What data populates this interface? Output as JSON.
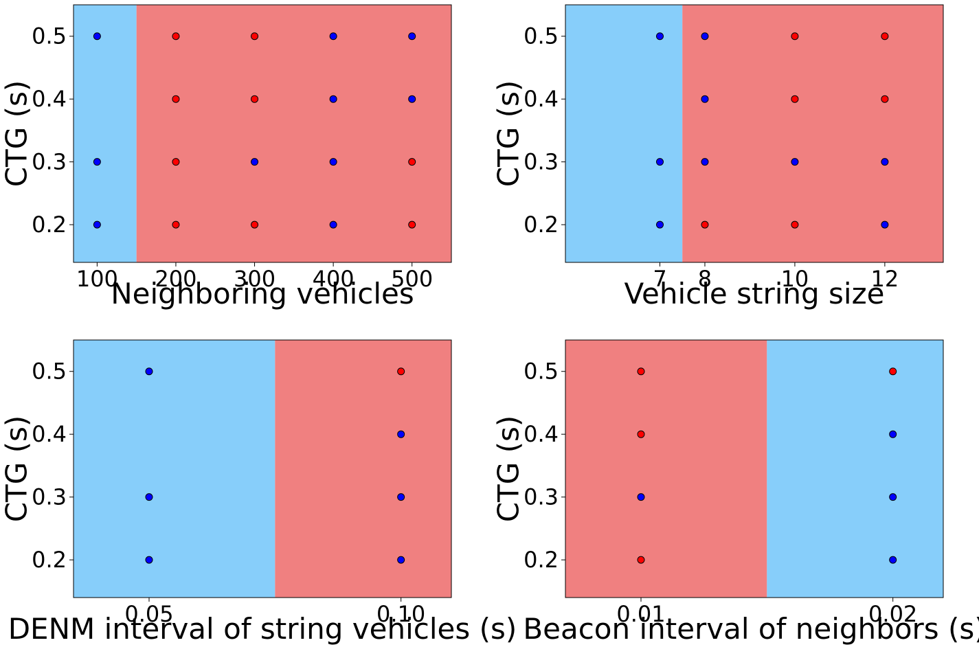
{
  "colors": {
    "region_blue": "#87cefa",
    "region_red": "#f08080",
    "point_blue": "#0000ff",
    "point_red": "#ff0000",
    "marker_edge": "#000000"
  },
  "chart_data": [
    {
      "type": "scatter",
      "xlabel": "Neighboring vehicles",
      "ylabel": "CTG (s)",
      "xlim": [
        70,
        550
      ],
      "ylim": [
        0.14,
        0.55
      ],
      "xticks": [
        100,
        200,
        300,
        400,
        500
      ],
      "xtick_labels": [
        "100",
        "200",
        "300",
        "400",
        "500"
      ],
      "yticks": [
        0.2,
        0.3,
        0.4,
        0.5
      ],
      "ytick_labels": [
        "0.2",
        "0.3",
        "0.4",
        "0.5"
      ],
      "regions": [
        {
          "from": 70,
          "to": 150,
          "class": "blue"
        },
        {
          "from": 150,
          "to": 550,
          "class": "red"
        }
      ],
      "points": [
        {
          "x": 100,
          "y": 0.5,
          "class": "blue"
        },
        {
          "x": 100,
          "y": 0.3,
          "class": "blue"
        },
        {
          "x": 100,
          "y": 0.2,
          "class": "blue"
        },
        {
          "x": 200,
          "y": 0.5,
          "class": "red"
        },
        {
          "x": 200,
          "y": 0.4,
          "class": "red"
        },
        {
          "x": 200,
          "y": 0.3,
          "class": "red"
        },
        {
          "x": 200,
          "y": 0.2,
          "class": "red"
        },
        {
          "x": 300,
          "y": 0.5,
          "class": "red"
        },
        {
          "x": 300,
          "y": 0.4,
          "class": "red"
        },
        {
          "x": 300,
          "y": 0.3,
          "class": "blue"
        },
        {
          "x": 300,
          "y": 0.2,
          "class": "red"
        },
        {
          "x": 400,
          "y": 0.5,
          "class": "blue"
        },
        {
          "x": 400,
          "y": 0.4,
          "class": "blue"
        },
        {
          "x": 400,
          "y": 0.3,
          "class": "blue"
        },
        {
          "x": 400,
          "y": 0.2,
          "class": "blue"
        },
        {
          "x": 500,
          "y": 0.5,
          "class": "blue"
        },
        {
          "x": 500,
          "y": 0.4,
          "class": "blue"
        },
        {
          "x": 500,
          "y": 0.3,
          "class": "red"
        },
        {
          "x": 500,
          "y": 0.2,
          "class": "red"
        }
      ]
    },
    {
      "type": "scatter",
      "xlabel": "Vehicle string size",
      "ylabel": "CTG (s)",
      "xlim": [
        4.9,
        13.3
      ],
      "ylim": [
        0.14,
        0.55
      ],
      "xticks": [
        7,
        8,
        10,
        12
      ],
      "xtick_labels": [
        "7",
        "8",
        "10",
        "12"
      ],
      "yticks": [
        0.2,
        0.3,
        0.4,
        0.5
      ],
      "ytick_labels": [
        "0.2",
        "0.3",
        "0.4",
        "0.5"
      ],
      "regions": [
        {
          "from": 4.9,
          "to": 7.5,
          "class": "blue"
        },
        {
          "from": 7.5,
          "to": 13.3,
          "class": "red"
        }
      ],
      "points": [
        {
          "x": 7,
          "y": 0.5,
          "class": "blue"
        },
        {
          "x": 7,
          "y": 0.3,
          "class": "blue"
        },
        {
          "x": 7,
          "y": 0.2,
          "class": "blue"
        },
        {
          "x": 8,
          "y": 0.5,
          "class": "blue"
        },
        {
          "x": 8,
          "y": 0.4,
          "class": "blue"
        },
        {
          "x": 8,
          "y": 0.3,
          "class": "blue"
        },
        {
          "x": 8,
          "y": 0.2,
          "class": "red"
        },
        {
          "x": 10,
          "y": 0.5,
          "class": "red"
        },
        {
          "x": 10,
          "y": 0.4,
          "class": "red"
        },
        {
          "x": 10,
          "y": 0.3,
          "class": "blue"
        },
        {
          "x": 10,
          "y": 0.2,
          "class": "red"
        },
        {
          "x": 12,
          "y": 0.5,
          "class": "red"
        },
        {
          "x": 12,
          "y": 0.4,
          "class": "red"
        },
        {
          "x": 12,
          "y": 0.3,
          "class": "blue"
        },
        {
          "x": 12,
          "y": 0.2,
          "class": "blue"
        }
      ]
    },
    {
      "type": "scatter",
      "xlabel": "DENM interval of string vehicles (s)",
      "ylabel": "CTG (s)",
      "xlim": [
        0.035,
        0.11
      ],
      "ylim": [
        0.14,
        0.55
      ],
      "xticks": [
        0.05,
        0.1
      ],
      "xtick_labels": [
        "0.05",
        "0.10"
      ],
      "yticks": [
        0.2,
        0.3,
        0.4,
        0.5
      ],
      "ytick_labels": [
        "0.2",
        "0.3",
        "0.4",
        "0.5"
      ],
      "regions": [
        {
          "from": 0.035,
          "to": 0.075,
          "class": "blue"
        },
        {
          "from": 0.075,
          "to": 0.11,
          "class": "red"
        }
      ],
      "points": [
        {
          "x": 0.05,
          "y": 0.5,
          "class": "blue"
        },
        {
          "x": 0.05,
          "y": 0.3,
          "class": "blue"
        },
        {
          "x": 0.05,
          "y": 0.2,
          "class": "blue"
        },
        {
          "x": 0.1,
          "y": 0.5,
          "class": "red"
        },
        {
          "x": 0.1,
          "y": 0.4,
          "class": "blue"
        },
        {
          "x": 0.1,
          "y": 0.3,
          "class": "blue"
        },
        {
          "x": 0.1,
          "y": 0.2,
          "class": "blue"
        }
      ]
    },
    {
      "type": "scatter",
      "xlabel": "Beacon interval of neighbors (s)",
      "ylabel": "CTG (s)",
      "xlim": [
        0.007,
        0.022
      ],
      "ylim": [
        0.14,
        0.55
      ],
      "xticks": [
        0.01,
        0.02
      ],
      "xtick_labels": [
        "0.01",
        "0.02"
      ],
      "yticks": [
        0.2,
        0.3,
        0.4,
        0.5
      ],
      "ytick_labels": [
        "0.2",
        "0.3",
        "0.4",
        "0.5"
      ],
      "regions": [
        {
          "from": 0.007,
          "to": 0.015,
          "class": "red"
        },
        {
          "from": 0.015,
          "to": 0.022,
          "class": "blue"
        }
      ],
      "points": [
        {
          "x": 0.01,
          "y": 0.5,
          "class": "red"
        },
        {
          "x": 0.01,
          "y": 0.4,
          "class": "red"
        },
        {
          "x": 0.01,
          "y": 0.3,
          "class": "blue"
        },
        {
          "x": 0.01,
          "y": 0.2,
          "class": "red"
        },
        {
          "x": 0.02,
          "y": 0.5,
          "class": "red"
        },
        {
          "x": 0.02,
          "y": 0.4,
          "class": "blue"
        },
        {
          "x": 0.02,
          "y": 0.3,
          "class": "blue"
        },
        {
          "x": 0.02,
          "y": 0.2,
          "class": "blue"
        }
      ]
    }
  ]
}
